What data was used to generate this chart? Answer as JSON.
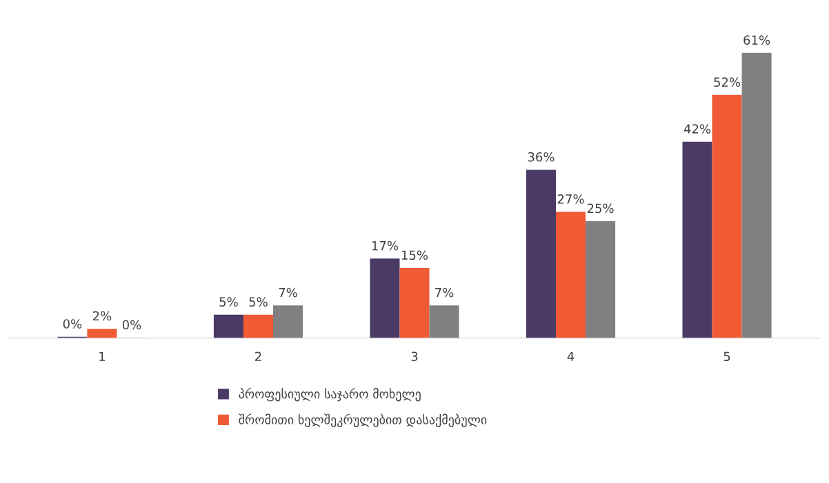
{
  "chart_data": {
    "type": "bar",
    "categories": [
      "1",
      "2",
      "3",
      "4",
      "5"
    ],
    "series": [
      {
        "name": "პროფესიული საჯარო მოხელე",
        "color": "#4b3966",
        "values": [
          0.3,
          5,
          17,
          36,
          42
        ],
        "value_labels": [
          "0%",
          "5%",
          "17%",
          "36%",
          "42%"
        ]
      },
      {
        "name": "შრომითი ხელშეკრულებით დასაქმებული",
        "color": "#f05a35",
        "values": [
          2,
          5,
          15,
          27,
          52
        ],
        "value_labels": [
          "2%",
          "5%",
          "15%",
          "27%",
          "52%"
        ]
      },
      {
        "color": "#808080",
        "values": [
          0.1,
          7,
          7,
          25,
          61
        ],
        "value_labels": [
          "0%",
          "7%",
          "7%",
          "25%",
          "61%"
        ]
      }
    ],
    "legend": "bottom",
    "grid": false,
    "tick_labels": "x"
  }
}
